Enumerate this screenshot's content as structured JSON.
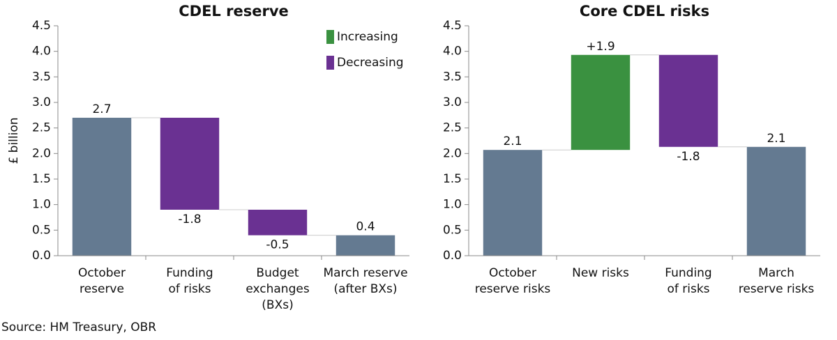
{
  "charts": [
    {
      "type": "waterfall",
      "title": "CDEL reserve",
      "ylabel": "£ billion",
      "categories": [
        [
          "October",
          "reserve"
        ],
        [
          "Funding",
          "of risks"
        ],
        [
          "Budget",
          "exchanges",
          "(BXs)"
        ],
        [
          "March reserve",
          "(after BXs)"
        ]
      ],
      "values": [
        2.7,
        -1.8,
        -0.5,
        0.4
      ],
      "kinds": [
        "total",
        "decrease",
        "decrease",
        "total"
      ],
      "colors": {
        "total": "#647a91",
        "increase": "#3a9140",
        "decrease": "#6a3192"
      },
      "legend": [
        {
          "name": "Increasing",
          "color": "#3a9140"
        },
        {
          "name": "Decreasing",
          "color": "#6a3192"
        }
      ],
      "legend_position": "top-right",
      "ylim": [
        0,
        4.5
      ],
      "yticks": [
        {
          "value": 0,
          "label": "0.0"
        },
        0.5,
        {
          "value": 1,
          "label": "1.0"
        },
        1.5,
        {
          "value": 2,
          "label": "2.0"
        },
        2.5,
        {
          "value": 3,
          "label": "3.0"
        },
        3.5,
        {
          "value": 4,
          "label": "4.0"
        },
        4.5
      ]
    },
    {
      "type": "waterfall",
      "title": "Core CDEL risks",
      "categories": [
        [
          "October",
          "reserve risks"
        ],
        [
          "New risks"
        ],
        [
          "Funding",
          "of risks"
        ],
        [
          "March",
          "reserve risks"
        ]
      ],
      "values": [
        2.07,
        1.86,
        -1.8,
        2.13
      ],
      "value_labels": [
        "2.1",
        "+1.9",
        "-1.8",
        "2.1"
      ],
      "kinds": [
        "total",
        "increase",
        "decrease",
        "total"
      ],
      "colors": {
        "total": "#647a91",
        "increase": "#3a9140",
        "decrease": "#6a3192"
      },
      "ylim": [
        0,
        4.5
      ],
      "yticks": [
        {
          "value": 0,
          "label": "0.0"
        },
        0.5,
        {
          "value": 1,
          "label": "1.0"
        },
        1.5,
        {
          "value": 2,
          "label": "2.0"
        },
        2.5,
        {
          "value": 3,
          "label": "3.0"
        },
        3.5,
        {
          "value": 4,
          "label": "4.0"
        },
        4.5
      ]
    }
  ],
  "source": "Source: HM Treasury, OBR"
}
